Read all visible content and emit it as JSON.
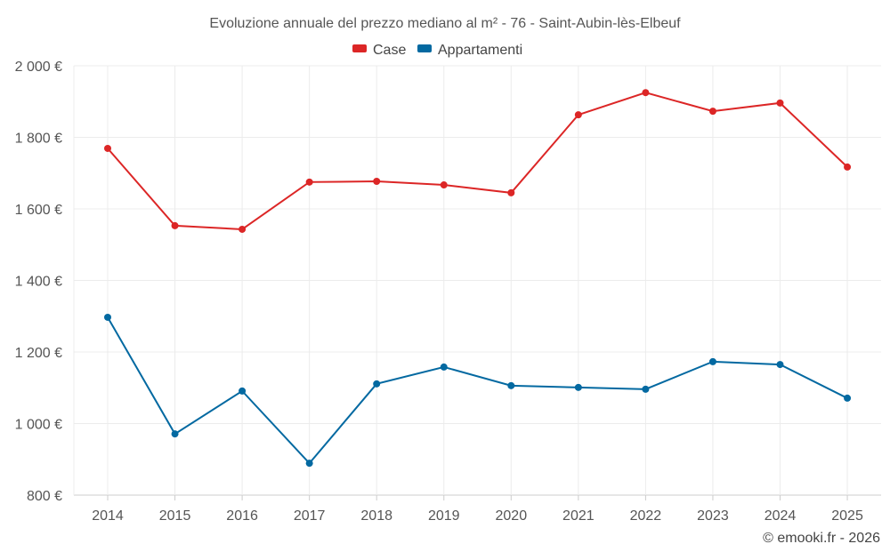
{
  "chart_data": {
    "type": "line",
    "title": "Evoluzione annuale del prezzo mediano al m² - 76 - Saint-Aubin-lès-Elbeuf",
    "categories": [
      "2014",
      "2015",
      "2016",
      "2017",
      "2018",
      "2019",
      "2020",
      "2021",
      "2022",
      "2023",
      "2024",
      "2025"
    ],
    "series": [
      {
        "name": "Case",
        "color": "#dc2626",
        "values": [
          1769,
          1553,
          1543,
          1675,
          1677,
          1667,
          1645,
          1863,
          1925,
          1873,
          1896,
          1717
        ]
      },
      {
        "name": "Appartamenti",
        "color": "#0369a1",
        "values": [
          1297,
          971,
          1091,
          889,
          1111,
          1158,
          1106,
          1101,
          1096,
          1173,
          1165,
          1071
        ]
      }
    ],
    "ylim": [
      800,
      2000
    ],
    "yticks": [
      800,
      1000,
      1200,
      1400,
      1600,
      1800,
      2000
    ],
    "ytick_labels": [
      "800 €",
      "1 000 €",
      "1 200 €",
      "1 400 €",
      "1 600 €",
      "1 800 €",
      "2 000 €"
    ],
    "xlabel": "",
    "ylabel": "",
    "grid": true,
    "legend_position": "top-center"
  },
  "credit": "© emooki.fr - 2026"
}
